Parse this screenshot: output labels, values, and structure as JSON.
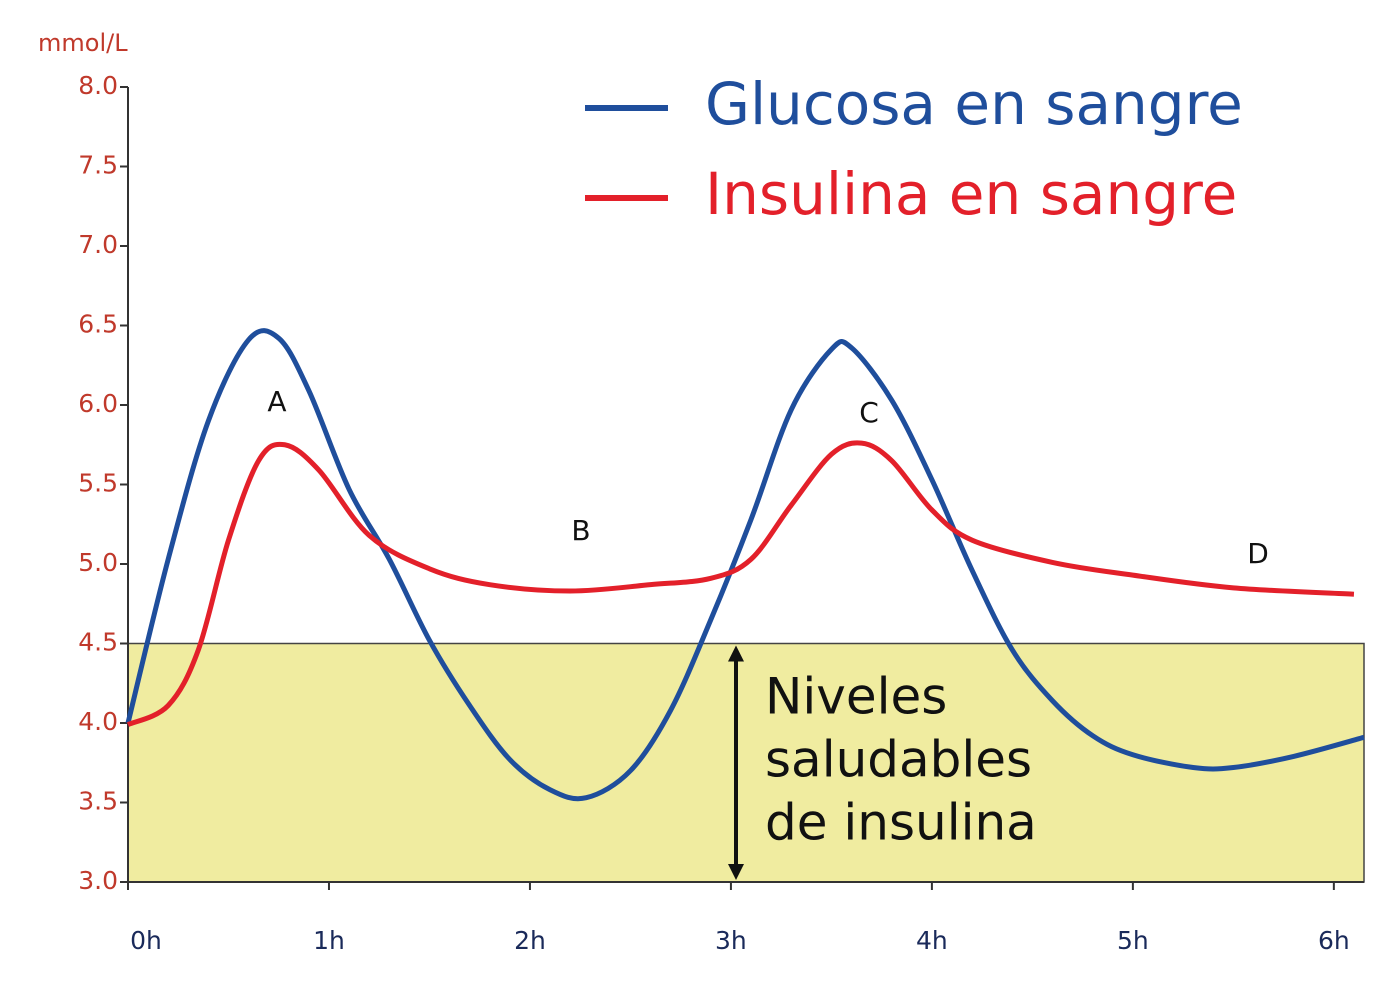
{
  "chart_data": {
    "type": "line",
    "y_unit": "mmol/L",
    "xlim": [
      0,
      6.15
    ],
    "xticks": [
      {
        "value": 0,
        "label": "0h"
      },
      {
        "value": 1,
        "label": "1h"
      },
      {
        "value": 2,
        "label": "2h"
      },
      {
        "value": 3,
        "label": "3h"
      },
      {
        "value": 4,
        "label": "4h"
      },
      {
        "value": 5,
        "label": "5h"
      },
      {
        "value": 6,
        "label": "6h"
      }
    ],
    "ylim": [
      3,
      8
    ],
    "yticks": [
      {
        "value": 3,
        "label": "3.0"
      },
      3.5,
      {
        "value": 4,
        "label": "4.0"
      },
      4.5,
      {
        "value": 5,
        "label": "5.0"
      },
      5.5,
      {
        "value": 6,
        "label": "6.0"
      },
      6.5,
      {
        "value": 7,
        "label": "7.0"
      },
      7.5,
      {
        "value": 8,
        "label": "8.0"
      }
    ],
    "legend": "top-right",
    "series": [
      {
        "name": "Glucosa en sangre",
        "color": "#1f4e9c",
        "x": [
          0,
          0.2,
          0.4,
          0.6,
          0.75,
          0.9,
          1.1,
          1.3,
          1.5,
          1.7,
          1.9,
          2.1,
          2.28,
          2.5,
          2.7,
          2.9,
          3.1,
          3.3,
          3.5,
          3.6,
          3.8,
          4.0,
          4.2,
          4.4,
          4.6,
          4.8,
          5.0,
          5.3,
          5.5,
          5.8,
          6.15
        ],
        "values": [
          4.0,
          5.03,
          5.9,
          6.41,
          6.42,
          6.09,
          5.47,
          5.03,
          4.52,
          4.11,
          3.77,
          3.58,
          3.53,
          3.7,
          4.08,
          4.65,
          5.28,
          5.97,
          6.35,
          6.36,
          6.03,
          5.53,
          4.96,
          4.46,
          4.14,
          3.92,
          3.8,
          3.72,
          3.72,
          3.79,
          3.91
        ]
      },
      {
        "name": "Insulina en sangre",
        "color": "#e3202a",
        "x": [
          0,
          0.2,
          0.35,
          0.5,
          0.65,
          0.78,
          0.95,
          1.2,
          1.5,
          1.8,
          2.2,
          2.6,
          2.9,
          3.1,
          3.3,
          3.5,
          3.65,
          3.8,
          4.0,
          4.2,
          4.6,
          5.0,
          5.5,
          6.1
        ],
        "values": [
          3.99,
          4.11,
          4.46,
          5.15,
          5.65,
          5.75,
          5.59,
          5.18,
          4.97,
          4.87,
          4.83,
          4.87,
          4.91,
          5.03,
          5.37,
          5.69,
          5.76,
          5.65,
          5.34,
          5.15,
          5.01,
          4.93,
          4.85,
          4.81
        ]
      }
    ],
    "highlight_range": [
      3,
      4.5
    ],
    "highlight_color": "#f0eca0",
    "highlight_label": [
      "Niveles",
      "saludables",
      "de insulina"
    ],
    "annotations": [
      "A",
      "B",
      "C",
      "D"
    ]
  }
}
